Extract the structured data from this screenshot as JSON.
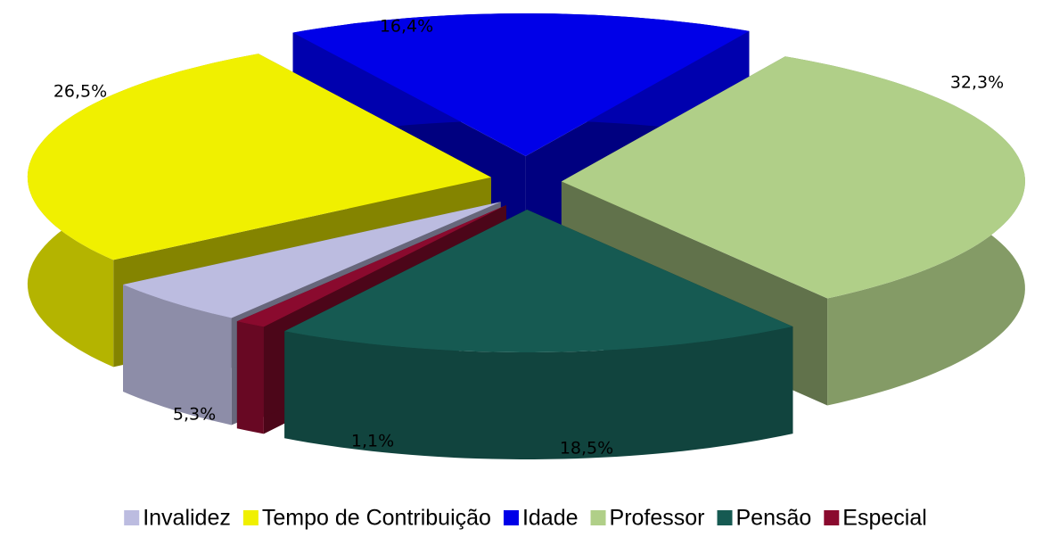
{
  "chart_data": {
    "type": "pie3d",
    "categories": [
      "Invalidez",
      "Tempo de Contribuição",
      "Idade",
      "Professor",
      "Pensão",
      "Especial"
    ],
    "values": [
      5.3,
      26.5,
      16.4,
      32.3,
      18.5,
      1.1
    ],
    "value_labels": [
      "5,3%",
      "26,5%",
      "16,4%",
      "32,3%",
      "18,5%",
      "1,1%"
    ],
    "colors": [
      "#bcbce0",
      "#f0f000",
      "#0000e8",
      "#b0cf88",
      "#165a52",
      "#8a0a2e"
    ],
    "legend": "bottom"
  }
}
